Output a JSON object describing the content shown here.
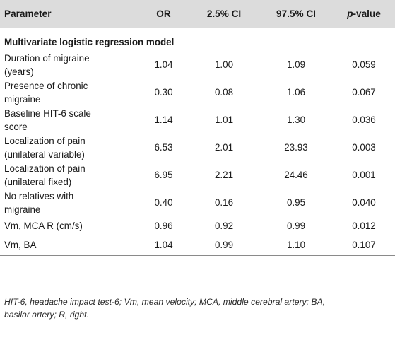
{
  "header": {
    "parameter": "Parameter",
    "or": "OR",
    "ci_low": "2.5% CI",
    "ci_high": "97.5% CI",
    "p_italic": "p",
    "p_rest": "-value"
  },
  "section_title": "Multivariate logistic regression model",
  "rows": [
    {
      "param1": "Duration of migraine",
      "param2": "(years)",
      "or": "1.04",
      "ci_low": "1.00",
      "ci_high": "1.09",
      "p": "0.059"
    },
    {
      "param1": "Presence of chronic",
      "param2": "migraine",
      "or": "0.30",
      "ci_low": "0.08",
      "ci_high": "1.06",
      "p": "0.067"
    },
    {
      "param1": "Baseline HIT-6 scale",
      "param2": "score",
      "or": "1.14",
      "ci_low": "1.01",
      "ci_high": "1.30",
      "p": "0.036"
    },
    {
      "param1": "Localization of pain",
      "param2": "(unilateral variable)",
      "or": "6.53",
      "ci_low": "2.01",
      "ci_high": "23.93",
      "p": "0.003"
    },
    {
      "param1": "Localization of pain",
      "param2": "(unilateral fixed)",
      "or": "6.95",
      "ci_low": "2.21",
      "ci_high": "24.46",
      "p": "0.001"
    },
    {
      "param1": "No relatives with",
      "param2": "migraine",
      "or": "0.40",
      "ci_low": "0.16",
      "ci_high": "0.95",
      "p": "0.040"
    },
    {
      "param1": "Vm, MCA R (cm/s)",
      "param2": "",
      "or": "0.96",
      "ci_low": "0.92",
      "ci_high": "0.99",
      "p": "0.012"
    },
    {
      "param1": "Vm, BA",
      "param2": "",
      "or": "1.04",
      "ci_low": "0.99",
      "ci_high": "1.10",
      "p": "0.107"
    }
  ],
  "footnote_line1": "HIT-6, headache impact test-6; Vm, mean velocity; MCA, middle cerebral artery; BA,",
  "footnote_line2": "basilar artery; R, right."
}
